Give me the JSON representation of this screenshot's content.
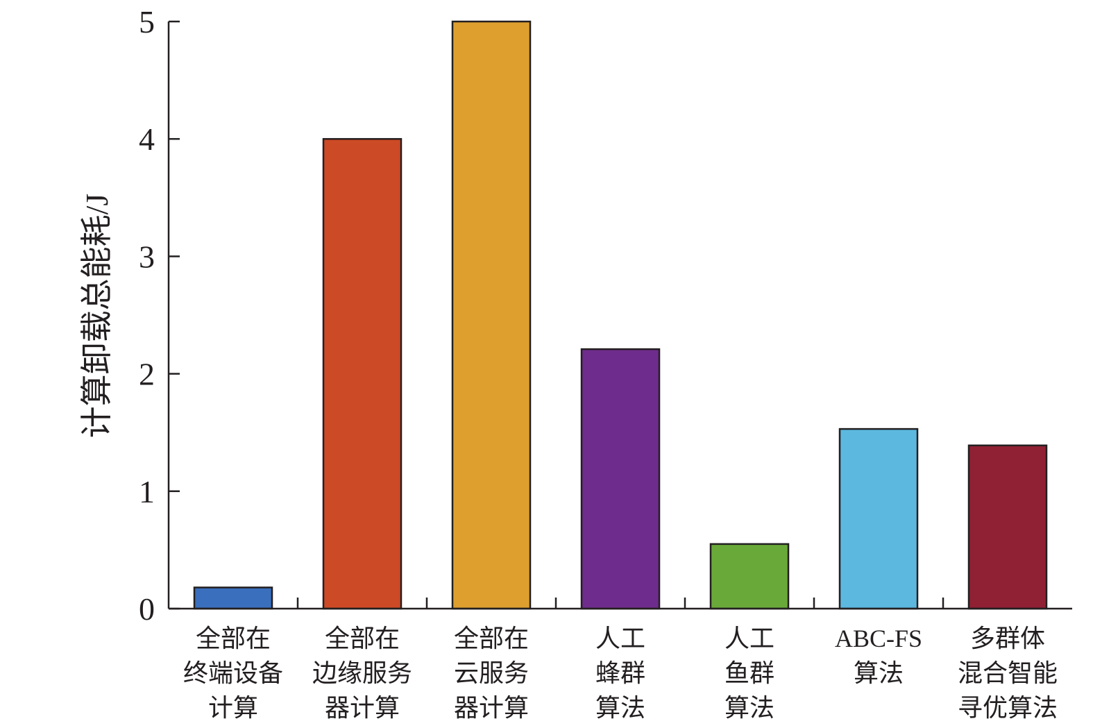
{
  "chart_data": {
    "type": "bar",
    "title": "",
    "xlabel": "",
    "ylabel": "计算卸载总能耗/J",
    "ylim": [
      0,
      5
    ],
    "yticks": [
      0,
      1,
      2,
      3,
      4,
      5
    ],
    "grid": false,
    "categories": [
      [
        "全部在",
        "终端设备",
        "计算"
      ],
      [
        "全部在",
        "边缘服务",
        "器计算"
      ],
      [
        "全部在",
        "云服务",
        "器计算"
      ],
      [
        "人工",
        "蜂群",
        "算法"
      ],
      [
        "人工",
        "鱼群",
        "算法"
      ],
      [
        "ABC-FS",
        "算法"
      ],
      [
        "多群体",
        "混合智能",
        "寻优算法"
      ]
    ],
    "values": [
      0.18,
      4.0,
      5.0,
      2.21,
      0.55,
      1.53,
      1.39
    ],
    "colors": [
      "#3a6fbd",
      "#cc4a26",
      "#de9f2f",
      "#6e2d8c",
      "#69a93a",
      "#5cb8df",
      "#902033"
    ]
  }
}
